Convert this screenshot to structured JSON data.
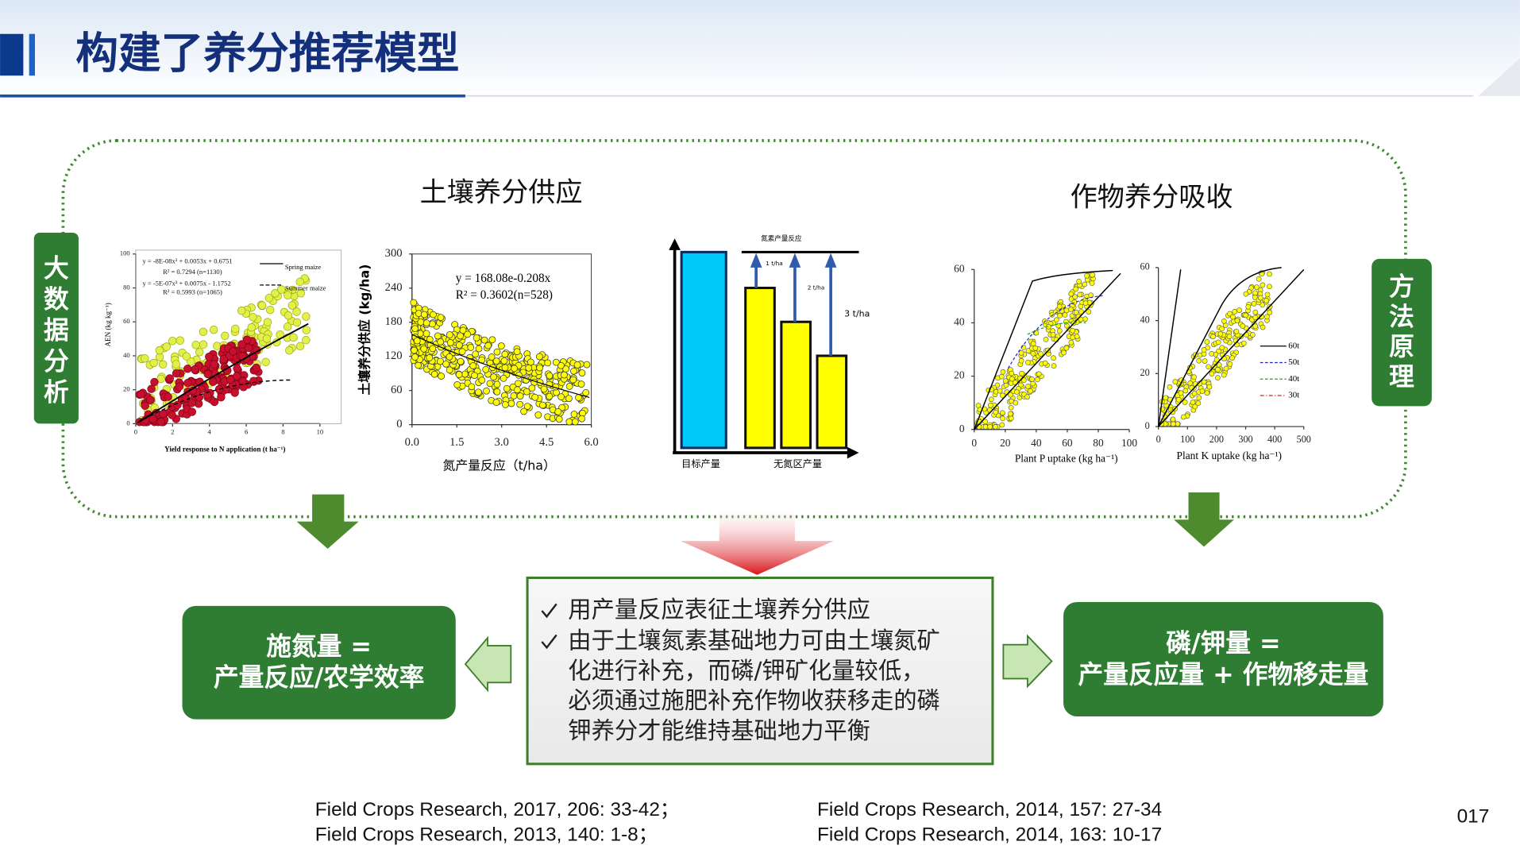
{
  "header": {
    "title": "构建了养分推荐模型"
  },
  "side_labels": {
    "left": "大数据分析",
    "right": "方法原理"
  },
  "sections": {
    "soil": "土壤养分供应",
    "crop": "作物养分吸收"
  },
  "figures": {
    "aen": {
      "ylabel": "AEN (kg kg⁻¹)",
      "xlabel": "Yield response to N application (t ha⁻¹)",
      "xlim": [
        0,
        10
      ],
      "ylim": [
        0,
        100
      ],
      "xticks": [
        0,
        2,
        4,
        6,
        8,
        10
      ],
      "yticks": [
        0,
        20,
        40,
        60,
        80,
        100
      ],
      "equations": [
        "y = -8E-08x² + 0.0053x + 0.6751",
        "R² = 0.7294 (n=1130)",
        "y = -5E-07x² + 0.0075x - 1.1752",
        "R² = 0.5993 (n=1065)"
      ],
      "legend": [
        "Spring maize",
        "Summer maize"
      ]
    },
    "soil_supply": {
      "ylabel": "土壤养分供应 (kg/ha)",
      "xlabel": "氮产量反应（t/ha）",
      "xlim": [
        0,
        6
      ],
      "ylim": [
        0,
        300
      ],
      "xticks": [
        {
          "value": 0,
          "label": "0.0"
        },
        {
          "value": 1.5,
          "label": "1.5"
        },
        {
          "value": 3,
          "label": "3.0"
        },
        {
          "value": 4.5,
          "label": "4.5"
        },
        {
          "value": 6,
          "label": "6.0"
        }
      ],
      "yticks": [
        0,
        60,
        120,
        180,
        240,
        300
      ],
      "equations": [
        "y = 168.08e-0.208x",
        "R² = 0.3602(n=528)"
      ]
    },
    "yield_response": {
      "title": "氮素产量反应",
      "gaps": [
        "1 t/ha",
        "2 t/ha",
        "3 t/ha"
      ],
      "categories": [
        "目标产量",
        "无氮区产量"
      ]
    },
    "p_uptake": {
      "xlabel": "Plant P uptake (kg ha⁻¹)",
      "xlim": [
        0,
        100
      ],
      "ylim": [
        0,
        60
      ],
      "xticks": [
        0,
        20,
        40,
        60,
        80,
        100
      ],
      "yticks": [
        0,
        20,
        40,
        60
      ]
    },
    "k_uptake": {
      "xlabel": "Plant K uptake (kg ha⁻¹)",
      "xlim": [
        0,
        500
      ],
      "ylim": [
        0,
        60
      ],
      "xticks": [
        0,
        100,
        200,
        300,
        400,
        500
      ],
      "yticks": [
        0,
        20,
        40,
        60
      ],
      "legend": [
        "60t",
        "50t",
        "40t",
        "30t"
      ]
    }
  },
  "boxes": {
    "left": [
      "施氮量 =",
      "产量反应/农学效率"
    ],
    "center": {
      "bullet1": [
        "用产量反应表征土壤养分供应"
      ],
      "bullet2": [
        "由于土壤氮素基础地力可由土壤氮矿",
        "化进行补充，而磷/钾矿化量较低，",
        "必须通过施肥补充作物收获移走的磷",
        "钾养分才能维持基础地力平衡"
      ]
    },
    "right": [
      "磷/钾量 =",
      "产量反应量 + 作物移走量"
    ]
  },
  "references": {
    "left": [
      "Field Crops Research, 2017, 206: 33-42；",
      "Field Crops Research, 2013, 140: 1-8；"
    ],
    "right": [
      "Field Crops Research, 2014, 157: 27-34",
      "Field Crops Research, 2014, 163: 10-17"
    ]
  },
  "page_number": "017"
}
